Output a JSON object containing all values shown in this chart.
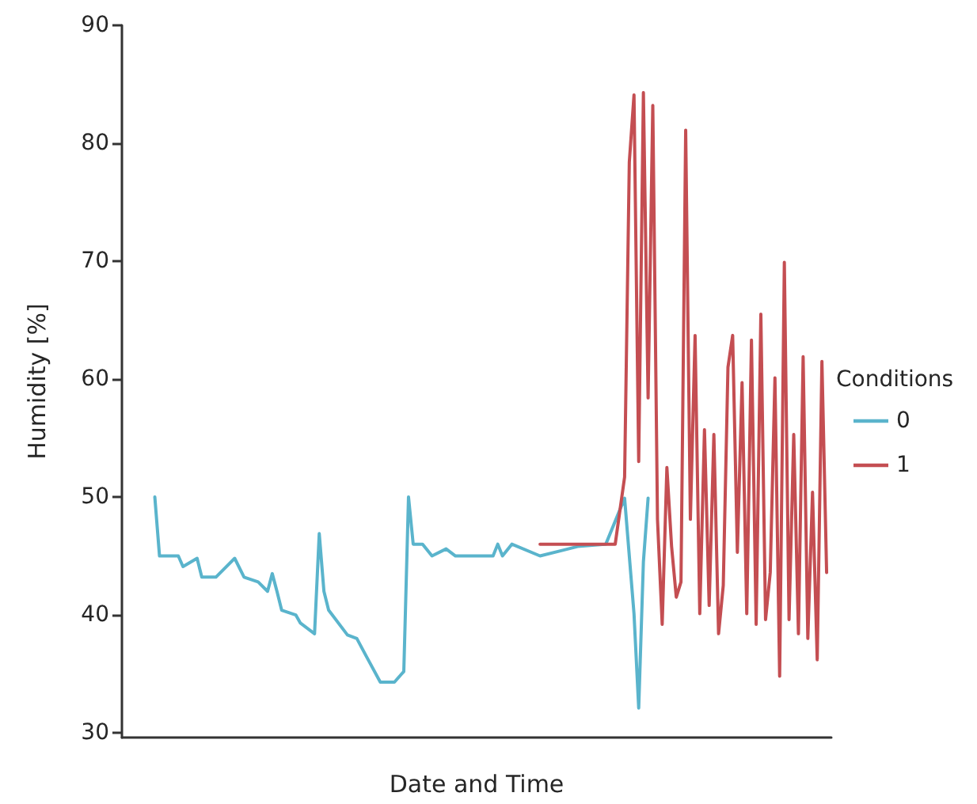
{
  "chart_data": {
    "type": "line",
    "xlabel": "Date and Time",
    "ylabel": "Humidity [%]",
    "legend_title": "Conditions",
    "legend": "right",
    "grid": false,
    "tick_labels": "y",
    "ylim": [
      29.6,
      90
    ],
    "yticks": [
      30,
      40,
      50,
      60,
      70,
      80,
      90
    ],
    "categories": [
      null,
      null,
      null,
      null,
      null,
      null,
      null,
      null,
      null,
      null,
      null,
      null,
      null,
      null,
      null,
      null,
      null,
      null,
      null,
      null,
      null,
      null,
      null,
      null,
      null,
      null,
      null,
      null,
      null,
      null,
      null,
      null,
      null,
      null,
      null,
      null,
      null,
      null,
      null,
      null,
      null,
      null,
      null,
      null,
      null,
      null,
      null,
      null,
      null,
      null,
      null,
      null,
      null,
      null,
      null,
      null,
      null,
      null,
      null,
      null,
      null,
      null,
      null,
      null,
      null,
      null,
      null,
      null,
      null,
      null,
      null,
      null,
      null,
      null,
      null,
      null,
      null,
      null,
      null,
      null,
      null,
      null,
      null,
      null,
      null,
      null,
      null,
      null,
      null,
      null,
      null,
      null,
      null,
      null,
      null,
      null,
      null,
      null,
      null,
      null,
      null,
      null,
      null,
      null,
      null,
      null,
      null,
      null,
      null,
      null,
      null,
      null,
      null,
      null,
      null,
      null,
      null,
      null,
      null,
      null,
      null,
      null,
      null,
      null,
      null,
      null,
      null,
      null,
      null,
      null,
      null,
      null,
      null,
      null,
      null,
      null,
      null,
      null,
      null,
      null,
      null,
      null,
      null,
      null,
      null,
      null,
      null,
      null,
      null,
      null,
      null,
      null
    ],
    "series": [
      {
        "name": "0",
        "color": "#5ab4cc",
        "values": [
          null,
          null,
          null,
          null,
          null,
          null,
          null,
          50,
          45,
          null,
          null,
          null,
          45,
          44.1,
          null,
          null,
          44.8,
          43.2,
          null,
          null,
          43.2,
          null,
          null,
          null,
          44.8,
          null,
          43.2,
          null,
          null,
          42.8,
          null,
          42,
          43.5,
          42,
          40.4,
          null,
          null,
          40,
          39.3,
          null,
          null,
          38.4,
          46.9,
          42,
          40.4,
          null,
          null,
          null,
          38.3,
          null,
          38,
          null,
          36.5,
          null,
          null,
          34.3,
          null,
          null,
          34.3,
          null,
          35.2,
          50,
          46,
          null,
          46,
          null,
          45,
          null,
          null,
          45.6,
          null,
          45,
          null,
          null,
          null,
          null,
          null,
          null,
          null,
          45,
          46,
          45,
          null,
          46,
          null,
          null,
          null,
          null,
          null,
          45,
          null,
          null,
          null,
          null,
          45.5,
          null,
          null,
          45.8,
          null,
          null,
          null,
          null,
          null,
          46,
          null,
          null,
          null,
          49.9,
          null,
          40.1,
          32.1,
          44.5,
          49.9,
          null,
          null,
          null,
          null,
          null,
          null,
          null,
          null,
          null,
          null,
          null,
          null,
          null,
          null,
          null,
          null,
          null,
          null,
          null,
          null,
          null,
          null,
          null,
          null,
          null,
          null,
          null,
          null,
          null,
          null,
          null,
          null,
          null,
          null,
          null,
          null,
          null,
          null,
          null
        ]
      },
      {
        "name": "1",
        "color": "#c44e52",
        "values": [
          null,
          null,
          null,
          null,
          null,
          null,
          null,
          null,
          null,
          null,
          null,
          null,
          null,
          null,
          null,
          null,
          null,
          null,
          null,
          null,
          null,
          null,
          null,
          null,
          null,
          null,
          null,
          null,
          null,
          null,
          null,
          null,
          null,
          null,
          null,
          null,
          null,
          null,
          null,
          null,
          null,
          null,
          null,
          null,
          null,
          null,
          null,
          null,
          null,
          null,
          null,
          null,
          null,
          null,
          null,
          null,
          null,
          null,
          null,
          null,
          null,
          null,
          null,
          null,
          null,
          null,
          null,
          null,
          null,
          null,
          null,
          null,
          null,
          null,
          null,
          null,
          null,
          null,
          null,
          null,
          null,
          null,
          null,
          null,
          null,
          null,
          null,
          null,
          null,
          46,
          null,
          null,
          null,
          null,
          null,
          null,
          null,
          null,
          null,
          null,
          null,
          null,
          null,
          null,
          null,
          46,
          null,
          51.7,
          78.4,
          84.1,
          53,
          84.3,
          58.4,
          83.2,
          48.1,
          39.2,
          52.5,
          45.8,
          41.5,
          42.8,
          81.1,
          48.1,
          63.7,
          40.1,
          55.7,
          40.8,
          55.3,
          38.4,
          42.5,
          61,
          63.7,
          45.3,
          59.7,
          40.1,
          63.3,
          39.2,
          65.5,
          39.6,
          43.6,
          60.1,
          34.8,
          69.9,
          39.6,
          55.3,
          38.4,
          61.9,
          38,
          50.4,
          36.2,
          61.5,
          43.6,
          null
        ]
      }
    ]
  }
}
